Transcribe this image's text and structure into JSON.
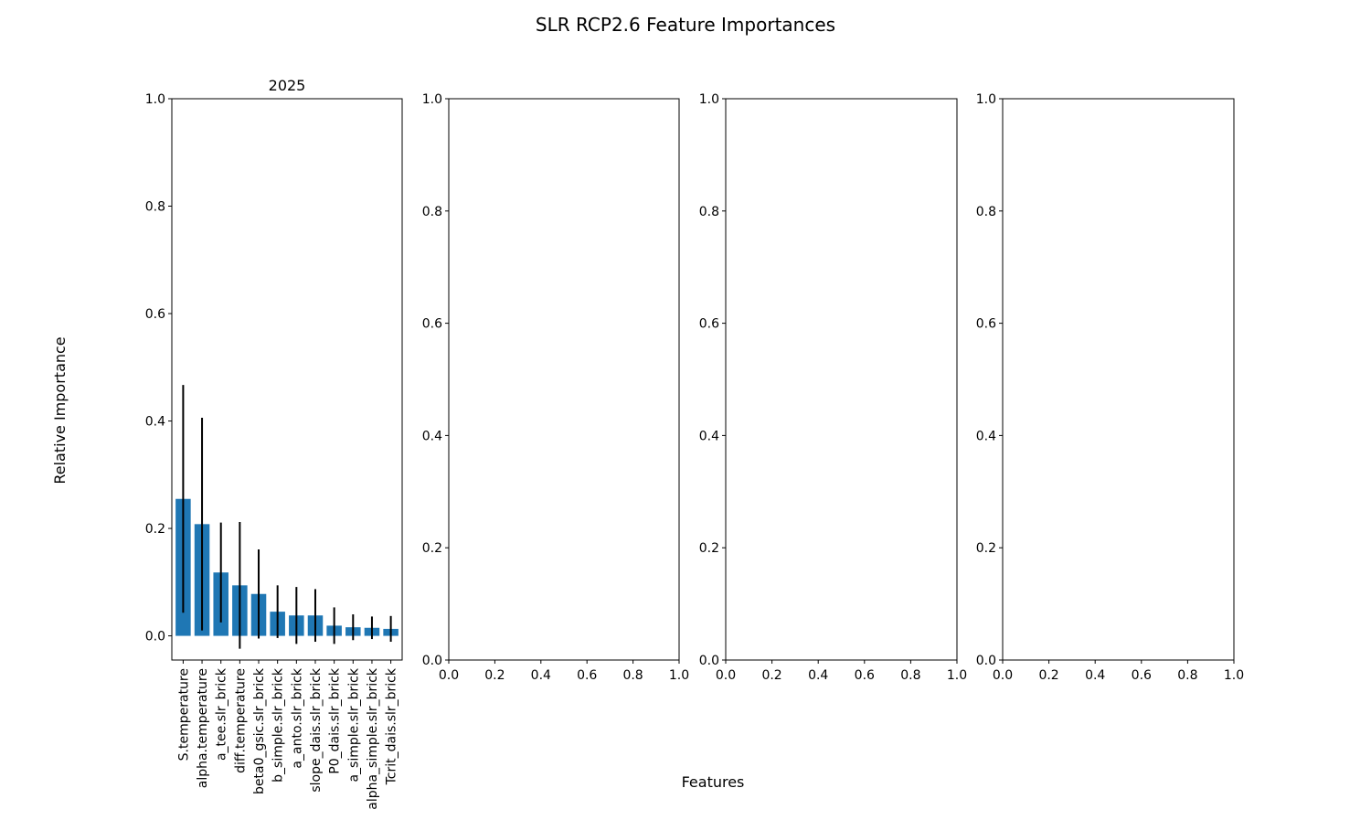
{
  "figure": {
    "title": "SLR RCP2.6 Feature Importances",
    "xlabel": "Features",
    "ylabel": "Relative Importance"
  },
  "colors": {
    "bar": "#1f77b4",
    "errorbar": "#000000",
    "axis": "#000000"
  },
  "chart_data": [
    {
      "type": "bar",
      "title": "2025",
      "categories": [
        "S.temperature",
        "alpha.temperature",
        "a_tee.slr_brick",
        "diff.temperature",
        "beta0_gsic.slr_brick",
        "b_simple.slr_brick",
        "a_anto.slr_brick",
        "slope_dais.slr_brick",
        "P0_dais.slr_brick",
        "a_simple.slr_brick",
        "alpha_simple.slr_brick",
        "Tcrit_dais.slr_brick"
      ],
      "values": [
        0.255,
        0.208,
        0.118,
        0.094,
        0.078,
        0.045,
        0.038,
        0.038,
        0.019,
        0.016,
        0.015,
        0.013
      ],
      "errors": [
        0.212,
        0.198,
        0.093,
        0.118,
        0.083,
        0.049,
        0.053,
        0.049,
        0.034,
        0.024,
        0.021,
        0.024
      ],
      "ylim": [
        -0.045,
        1.0
      ],
      "yticks": [
        "0.0",
        "0.2",
        "0.4",
        "0.6",
        "0.8",
        "1.0"
      ],
      "grid": false
    },
    {
      "type": "bar",
      "empty": true,
      "xlim": [
        0,
        1
      ],
      "ylim": [
        0,
        1
      ],
      "xticks": [
        "0.0",
        "0.2",
        "0.4",
        "0.6",
        "0.8",
        "1.0"
      ],
      "yticks": [
        "0.0",
        "0.2",
        "0.4",
        "0.6",
        "0.8",
        "1.0"
      ]
    },
    {
      "type": "bar",
      "empty": true,
      "xlim": [
        0,
        1
      ],
      "ylim": [
        0,
        1
      ],
      "xticks": [
        "0.0",
        "0.2",
        "0.4",
        "0.6",
        "0.8",
        "1.0"
      ],
      "yticks": [
        "0.0",
        "0.2",
        "0.4",
        "0.6",
        "0.8",
        "1.0"
      ]
    },
    {
      "type": "bar",
      "empty": true,
      "xlim": [
        0,
        1
      ],
      "ylim": [
        0,
        1
      ],
      "xticks": [
        "0.0",
        "0.2",
        "0.4",
        "0.6",
        "0.8",
        "1.0"
      ],
      "yticks": [
        "0.0",
        "0.2",
        "0.4",
        "0.6",
        "0.8",
        "1.0"
      ]
    }
  ]
}
